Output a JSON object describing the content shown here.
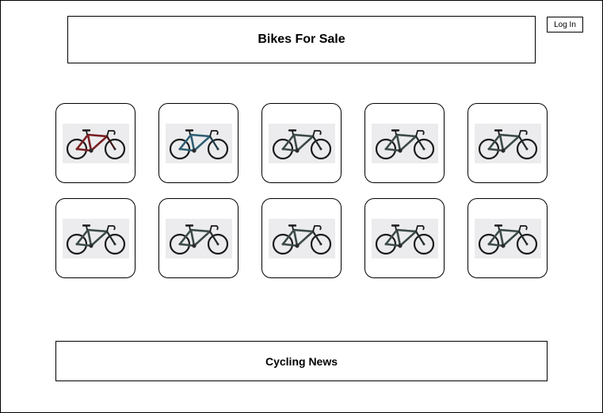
{
  "header": {
    "title": "Bikes For Sale"
  },
  "auth": {
    "login_label": "Log In"
  },
  "bikes": [
    {
      "frame_color": "#7a1f22",
      "accent": "#3b1214"
    },
    {
      "frame_color": "#2f5f73",
      "accent": "#1d3a47"
    },
    {
      "frame_color": "#3c4a47",
      "accent": "#222a28"
    },
    {
      "frame_color": "#3c4a47",
      "accent": "#222a28"
    },
    {
      "frame_color": "#3c4a47",
      "accent": "#222a28"
    },
    {
      "frame_color": "#3c4a47",
      "accent": "#222a28"
    },
    {
      "frame_color": "#3c4a47",
      "accent": "#222a28"
    },
    {
      "frame_color": "#3c4a47",
      "accent": "#222a28"
    },
    {
      "frame_color": "#3c4a47",
      "accent": "#222a28"
    },
    {
      "frame_color": "#3c4a47",
      "accent": "#222a28"
    }
  ],
  "news": {
    "title": "Cycling News"
  }
}
